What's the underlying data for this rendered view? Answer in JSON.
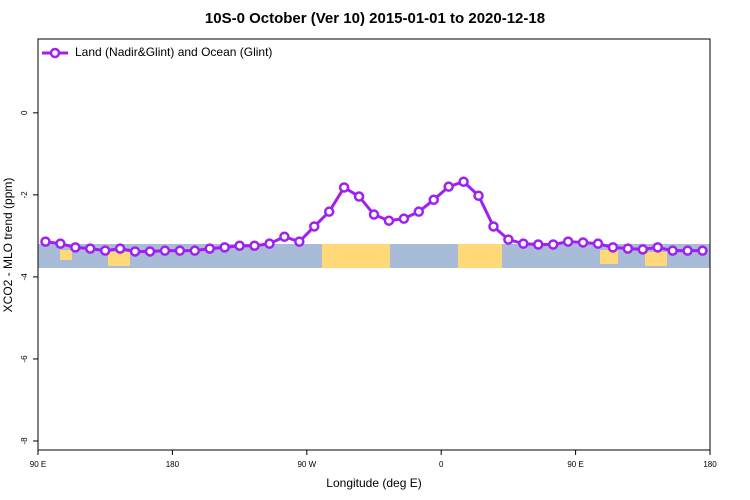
{
  "chart_data": {
    "type": "line",
    "title": "10S-0 October (Ver 10)   2015-01-01 to 2020-12-18",
    "x_label": "Longitude (deg E)",
    "y_label": "XCO2 - MLO trend (ppm)",
    "xlim": [
      90,
      540
    ],
    "ylim": [
      -8.22,
      1.8
    ],
    "xticks": [
      {
        "value": 90,
        "label": "90 E"
      },
      {
        "value": 180,
        "label": "180"
      },
      {
        "value": 270,
        "label": "90 W"
      },
      {
        "value": 360,
        "label": "0"
      },
      {
        "value": 450,
        "label": "90 E"
      },
      {
        "value": 540,
        "label": "180"
      }
    ],
    "yticks": [
      0,
      -2,
      -4,
      -6,
      -8
    ],
    "legend": "top-left",
    "x": [
      95,
      105,
      115,
      125,
      135,
      145,
      155,
      165,
      175,
      185,
      195,
      205,
      215,
      225,
      235,
      245,
      255,
      265,
      275,
      285,
      295,
      305,
      315,
      325,
      335,
      345,
      355,
      365,
      375,
      385,
      395,
      405,
      415,
      425,
      435,
      445,
      455,
      465,
      475,
      485,
      495,
      505,
      515,
      525,
      535
    ],
    "series": [
      {
        "name": "Land (Nadir&Glint) and Ocean (Glint)",
        "color": "#a020f0",
        "values": [
          -3.14,
          -3.19,
          -3.28,
          -3.31,
          -3.36,
          -3.31,
          -3.38,
          -3.38,
          -3.36,
          -3.36,
          -3.36,
          -3.31,
          -3.28,
          -3.24,
          -3.24,
          -3.19,
          -3.02,
          -3.14,
          -2.77,
          -2.41,
          -1.82,
          -2.04,
          -2.48,
          -2.63,
          -2.58,
          -2.41,
          -2.12,
          -1.8,
          -1.68,
          -2.02,
          -2.77,
          -3.09,
          -3.19,
          -3.21,
          -3.21,
          -3.14,
          -3.16,
          -3.19,
          -3.28,
          -3.31,
          -3.33,
          -3.28,
          -3.36,
          -3.36,
          -3.36
        ]
      }
    ]
  }
}
